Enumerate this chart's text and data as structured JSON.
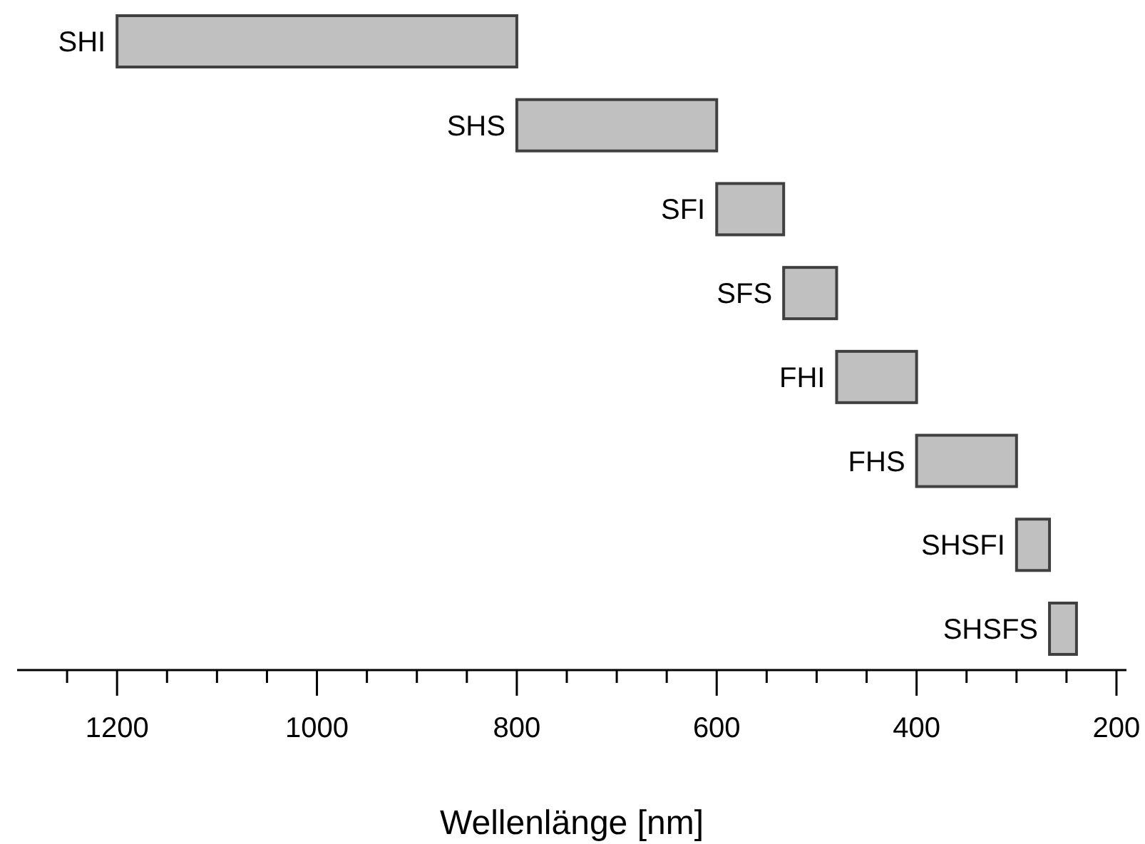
{
  "chart_data": {
    "type": "bar",
    "orientation": "horizontal",
    "xlabel": "Wellenlänge [nm]",
    "categories": [
      "SHI",
      "SHS",
      "SFI",
      "SFS",
      "FHI",
      "FHS",
      "SHSFI",
      "SHSFS"
    ],
    "base": [
      800,
      600,
      533,
      480,
      400,
      300,
      267,
      240
    ],
    "values": [
      400,
      200,
      67,
      53,
      80,
      100,
      33,
      27
    ],
    "color": "#c0c0c0",
    "xlim": [
      1300,
      190
    ],
    "xticks": [
      {
        "value": 1250,
        "label": null
      },
      1200,
      {
        "value": 1150,
        "label": null
      },
      1000,
      {
        "value": 1100,
        "label": null
      },
      {
        "value": 1050,
        "label": null
      },
      {
        "value": 950,
        "label": null
      },
      {
        "value": 900,
        "label": null
      },
      {
        "value": 850,
        "label": null
      },
      800,
      {
        "value": 750,
        "label": null
      },
      {
        "value": 700,
        "label": null
      },
      {
        "value": 650,
        "label": null
      },
      600,
      {
        "value": 550,
        "label": null
      },
      {
        "value": 500,
        "label": null
      },
      {
        "value": 450,
        "label": null
      },
      400,
      {
        "value": 350,
        "label": null
      },
      {
        "value": 300,
        "label": null
      },
      {
        "value": 250,
        "label": null
      },
      200
    ],
    "tick_labels": "x",
    "grid": false
  }
}
